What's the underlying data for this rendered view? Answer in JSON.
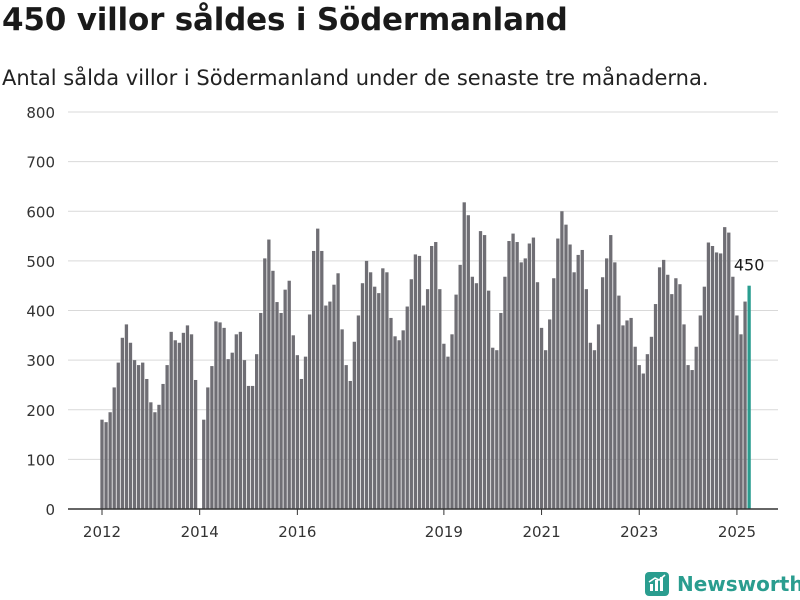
{
  "title": "450 villor såldes i Södermanland",
  "subtitle": "Antal sålda villor i Södermanland under de senaste tre månaderna.",
  "brand": {
    "name": "Newsworthy",
    "icon": "newsworthy-logo-icon",
    "color": "#2a9d8f"
  },
  "colors": {
    "bar": "#6f6e74",
    "highlight": "#2a9d8f",
    "grid": "#d9d9d9"
  },
  "chart_data": {
    "type": "bar",
    "ylim": [
      0,
      800
    ],
    "yticks": [
      0,
      100,
      200,
      300,
      400,
      500,
      600,
      700,
      800
    ],
    "xticks": [
      "2012",
      "2014",
      "2016",
      "2019",
      "2021",
      "2023",
      "2025"
    ],
    "x_start": "2012-01",
    "x_end": "2025-03",
    "grid": true,
    "highlight_label": "450",
    "values": [
      180,
      175,
      195,
      245,
      295,
      345,
      372,
      335,
      300,
      290,
      295,
      262,
      215,
      195,
      210,
      252,
      290,
      357,
      340,
      335,
      355,
      370,
      352,
      260,
      0,
      180,
      245,
      288,
      378,
      376,
      365,
      302,
      315,
      352,
      357,
      300,
      248,
      248,
      312,
      395,
      505,
      543,
      480,
      417,
      395,
      442,
      460,
      350,
      310,
      262,
      307,
      392,
      520,
      565,
      520,
      410,
      418,
      452,
      475,
      362,
      290,
      258,
      337,
      390,
      455,
      500,
      477,
      448,
      435,
      485,
      477,
      385,
      348,
      340,
      360,
      408,
      463,
      513,
      510,
      410,
      443,
      530,
      538,
      443,
      333,
      307,
      352,
      432,
      492,
      618,
      592,
      468,
      455,
      560,
      552,
      440,
      325,
      320,
      395,
      468,
      540,
      555,
      538,
      497,
      505,
      535,
      547,
      457,
      365,
      320,
      382,
      465,
      545,
      600,
      573,
      533,
      477,
      512,
      522,
      443,
      335,
      320,
      372,
      467,
      505,
      552,
      497,
      430,
      370,
      380,
      385,
      327,
      290,
      273,
      312,
      347,
      413,
      487,
      502,
      472,
      433,
      465,
      453,
      372,
      290,
      280,
      327,
      390,
      448,
      537,
      530,
      517,
      515,
      568,
      557,
      468,
      390,
      352,
      418,
      450
    ]
  }
}
